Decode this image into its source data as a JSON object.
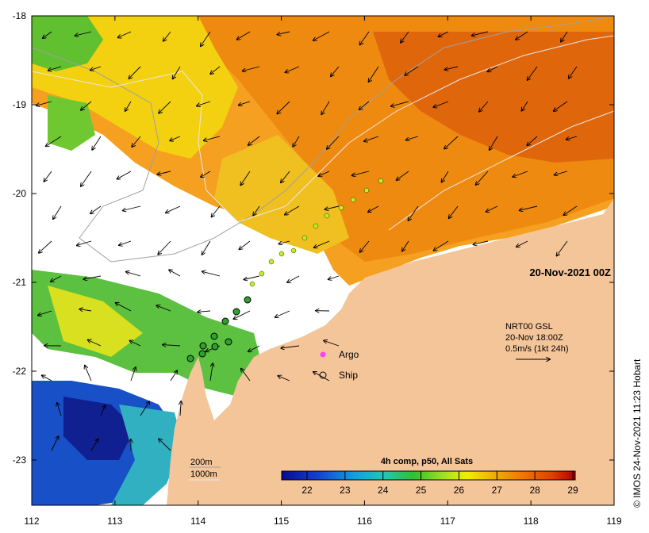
{
  "map": {
    "lon_ticks": [
      "112",
      "113",
      "114",
      "115",
      "116",
      "117",
      "118",
      "119"
    ],
    "lat_ticks": [
      "-18",
      "-19",
      "-20",
      "-21",
      "-22",
      "-23"
    ],
    "timestamp": "20-Nov-2021 00Z",
    "currents": {
      "source": "NRT00 GSL",
      "time": "20-Nov 18:00Z",
      "scale": "0.5m/s (1kt 24h)"
    },
    "legend": {
      "argo": "Argo",
      "ship": "Ship"
    },
    "isobaths": {
      "a": "200m",
      "b": "1000m"
    },
    "colorbar": {
      "title": "4h comp, p50, All Sats",
      "ticks": [
        "22",
        "23",
        "24",
        "25",
        "26",
        "27",
        "28",
        "29"
      ],
      "colors": [
        "#0a0a8c",
        "#1040d0",
        "#10a0e0",
        "#20c8b0",
        "#30c030",
        "#a0e020",
        "#f0f000",
        "#f0b000",
        "#f07800",
        "#e04000",
        "#b00000"
      ]
    },
    "credit": "© IMOS 24-Nov-2021 11:23 Hobart",
    "colors": {
      "land": "#f5c59a",
      "no_data": "#ffffff"
    }
  }
}
